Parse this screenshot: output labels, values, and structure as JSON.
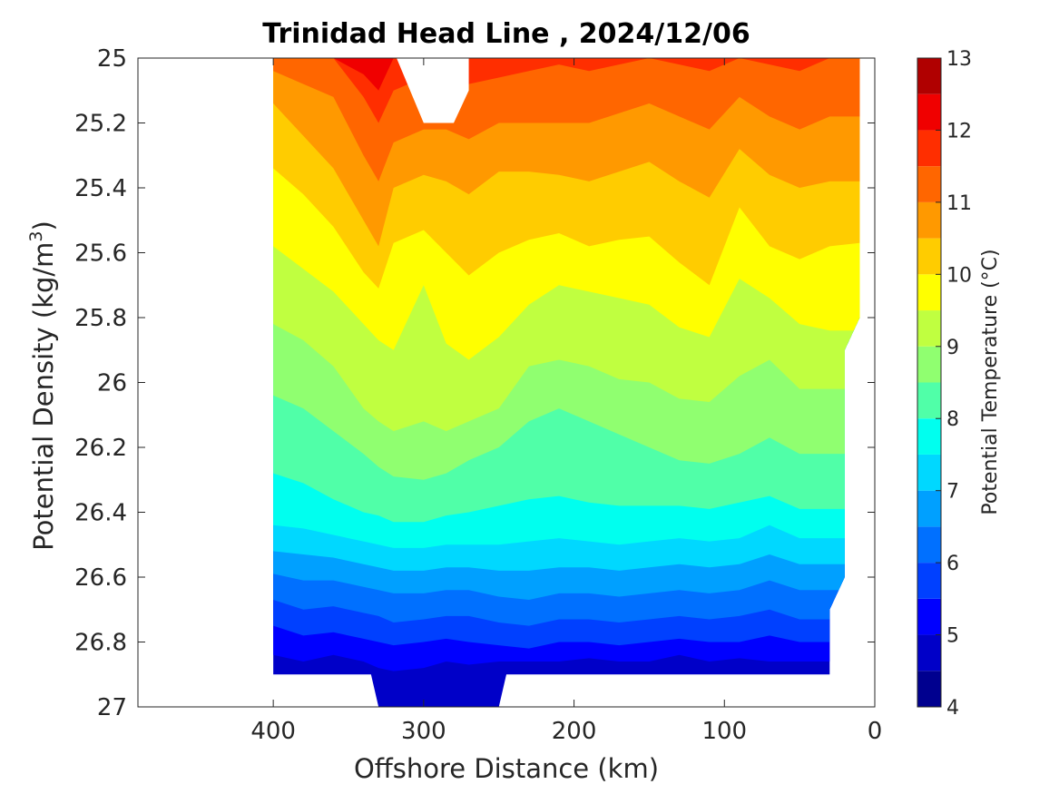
{
  "chart_data": {
    "type": "heatmap",
    "subtype": "filled-contour",
    "title": "Trinidad Head Line , 2024/12/06",
    "xlabel": "Offshore Distance (km)",
    "ylabel_main": "Potential Density (kg/m",
    "ylabel_sup": "3",
    "ylabel_tail": ")",
    "colorbar_label": "Potential Temperature (°C)",
    "xlim": [
      490,
      0
    ],
    "x_reversed": true,
    "ylim": [
      25,
      27
    ],
    "y_reversed": true,
    "xticks": [
      400,
      300,
      200,
      100,
      0
    ],
    "xtick_labels": [
      "400",
      "300",
      "200",
      "100",
      "0"
    ],
    "yticks": [
      25,
      25.2,
      25.4,
      25.6,
      25.8,
      26,
      26.2,
      26.4,
      26.6,
      26.8,
      27
    ],
    "ytick_labels": [
      "25",
      "25.2",
      "25.4",
      "25.6",
      "25.8",
      "26",
      "26.2",
      "26.4",
      "26.6",
      "26.8",
      "27"
    ],
    "colorbar": {
      "range": [
        4,
        13
      ],
      "levels": [
        4,
        4.5,
        5,
        5.5,
        6,
        6.5,
        7,
        7.5,
        8,
        8.5,
        9,
        9.5,
        10,
        10.5,
        11,
        11.5,
        12,
        12.5,
        13
      ],
      "colors": [
        "#00008f",
        "#0000c8",
        "#0000ff",
        "#0040ff",
        "#0070ff",
        "#00a0ff",
        "#00d8ff",
        "#00ffef",
        "#50ffa8",
        "#90ff70",
        "#c0ff40",
        "#ffff00",
        "#ffcc00",
        "#ff9900",
        "#ff6600",
        "#ff2e00",
        "#f00000",
        "#b00000"
      ],
      "ticks": [
        4,
        5,
        6,
        7,
        8,
        9,
        10,
        11,
        12,
        13
      ],
      "tick_labels": [
        "4",
        "5",
        "6",
        "7",
        "8",
        "9",
        "10",
        "11",
        "12",
        "13"
      ]
    },
    "x": [
      400,
      380,
      360,
      340,
      330,
      320,
      300,
      285,
      270,
      250,
      230,
      210,
      190,
      170,
      150,
      130,
      110,
      90,
      70,
      50,
      30,
      10
    ],
    "isopycnals_by_temperature": [
      {
        "temperature": 5.0,
        "density": [
          26.84,
          26.86,
          26.84,
          26.86,
          26.88,
          26.89,
          26.88,
          26.86,
          26.87,
          26.86,
          26.86,
          26.86,
          26.85,
          26.86,
          26.86,
          26.84,
          26.86,
          26.85,
          26.86,
          26.86,
          26.86,
          26.86
        ]
      },
      {
        "temperature": 5.5,
        "density": [
          26.75,
          26.78,
          26.77,
          26.79,
          26.8,
          26.81,
          26.8,
          26.79,
          26.8,
          26.81,
          26.82,
          26.8,
          26.8,
          26.81,
          26.8,
          26.79,
          26.8,
          26.8,
          26.78,
          26.8,
          26.8,
          26.8
        ]
      },
      {
        "temperature": 6.0,
        "density": [
          26.67,
          26.7,
          26.69,
          26.71,
          26.72,
          26.74,
          26.73,
          26.72,
          26.72,
          26.74,
          26.75,
          26.73,
          26.73,
          26.74,
          26.73,
          26.72,
          26.73,
          26.72,
          26.7,
          26.73,
          26.73,
          26.73
        ]
      },
      {
        "temperature": 6.5,
        "density": [
          26.59,
          26.61,
          26.61,
          26.63,
          26.64,
          26.65,
          26.65,
          26.64,
          26.64,
          26.66,
          26.67,
          26.65,
          26.65,
          26.66,
          26.65,
          26.64,
          26.65,
          26.64,
          26.61,
          26.64,
          26.64,
          26.64
        ]
      },
      {
        "temperature": 7.0,
        "density": [
          26.52,
          26.53,
          26.54,
          26.56,
          26.57,
          26.58,
          26.58,
          26.57,
          26.57,
          26.58,
          26.58,
          26.57,
          26.57,
          26.58,
          26.57,
          26.56,
          26.57,
          26.56,
          26.53,
          26.56,
          26.56,
          26.56
        ]
      },
      {
        "temperature": 7.5,
        "density": [
          26.44,
          26.45,
          26.47,
          26.49,
          26.5,
          26.51,
          26.51,
          26.5,
          26.5,
          26.5,
          26.49,
          26.48,
          26.49,
          26.5,
          26.49,
          26.48,
          26.49,
          26.48,
          26.44,
          26.48,
          26.48,
          26.48
        ]
      },
      {
        "temperature": 8.0,
        "density": [
          26.28,
          26.31,
          26.36,
          26.4,
          26.41,
          26.43,
          26.43,
          26.41,
          26.4,
          26.38,
          26.36,
          26.35,
          26.37,
          26.38,
          26.38,
          26.38,
          26.39,
          26.37,
          26.35,
          26.39,
          26.39,
          26.39
        ]
      },
      {
        "temperature": 8.5,
        "density": [
          26.04,
          26.08,
          26.15,
          26.22,
          26.26,
          26.29,
          26.3,
          26.28,
          26.24,
          26.2,
          26.12,
          26.08,
          26.12,
          26.16,
          26.2,
          26.24,
          26.25,
          26.22,
          26.17,
          26.22,
          26.22,
          26.22
        ]
      },
      {
        "temperature": 9.0,
        "density": [
          25.82,
          25.87,
          25.95,
          26.08,
          26.12,
          26.15,
          26.12,
          26.15,
          26.12,
          26.08,
          25.95,
          25.93,
          25.95,
          25.99,
          26.0,
          26.05,
          26.06,
          25.98,
          25.93,
          26.02,
          26.02,
          26.02
        ]
      },
      {
        "temperature": 9.5,
        "density": [
          25.58,
          25.65,
          25.72,
          25.82,
          25.87,
          25.9,
          25.7,
          25.88,
          25.93,
          25.86,
          25.76,
          25.7,
          25.72,
          25.74,
          25.76,
          25.83,
          25.86,
          25.68,
          25.74,
          25.82,
          25.84,
          25.84
        ]
      },
      {
        "temperature": 10.0,
        "density": [
          25.34,
          25.42,
          25.52,
          25.66,
          25.71,
          25.57,
          25.53,
          25.6,
          25.67,
          25.6,
          25.56,
          25.54,
          25.58,
          25.56,
          25.55,
          25.63,
          25.7,
          25.46,
          25.58,
          25.62,
          25.58,
          25.57
        ]
      },
      {
        "temperature": 10.5,
        "density": [
          25.14,
          25.24,
          25.34,
          25.5,
          25.58,
          25.4,
          25.36,
          25.38,
          25.42,
          25.35,
          25.35,
          25.36,
          25.38,
          25.35,
          25.32,
          25.38,
          25.43,
          25.28,
          25.36,
          25.4,
          25.38,
          25.38
        ]
      },
      {
        "temperature": 11.0,
        "density": [
          25.04,
          25.08,
          25.12,
          25.3,
          25.38,
          25.26,
          25.22,
          25.22,
          25.25,
          25.2,
          25.2,
          25.2,
          25.2,
          25.17,
          25.14,
          25.18,
          25.22,
          25.12,
          25.18,
          25.22,
          25.18,
          25.18
        ]
      },
      {
        "temperature": 11.5,
        "density": [
          25.0,
          25.0,
          25.0,
          25.12,
          25.2,
          25.1,
          25.06,
          25.06,
          25.08,
          25.06,
          25.04,
          25.02,
          25.04,
          25.02,
          25.0,
          25.02,
          25.04,
          25.0,
          25.02,
          25.04,
          25.0,
          25.0
        ]
      },
      {
        "temperature": 12.0,
        "density": [
          25.0,
          25.0,
          25.0,
          25.05,
          25.1,
          25.0,
          25.0,
          25.0,
          25.0,
          25.0,
          25.0,
          25.0,
          25.0,
          25.0,
          25.0,
          25.0,
          25.0,
          25.0,
          25.0,
          25.0,
          25.0,
          25.0
        ]
      }
    ],
    "data_coverage": {
      "x_min": 10,
      "x_max": 400,
      "density_max": 26.9,
      "deep_extension_x": [
        245,
        335
      ],
      "deep_extension_density": 27.0
    },
    "grid": false,
    "colorbar_position": "right"
  }
}
